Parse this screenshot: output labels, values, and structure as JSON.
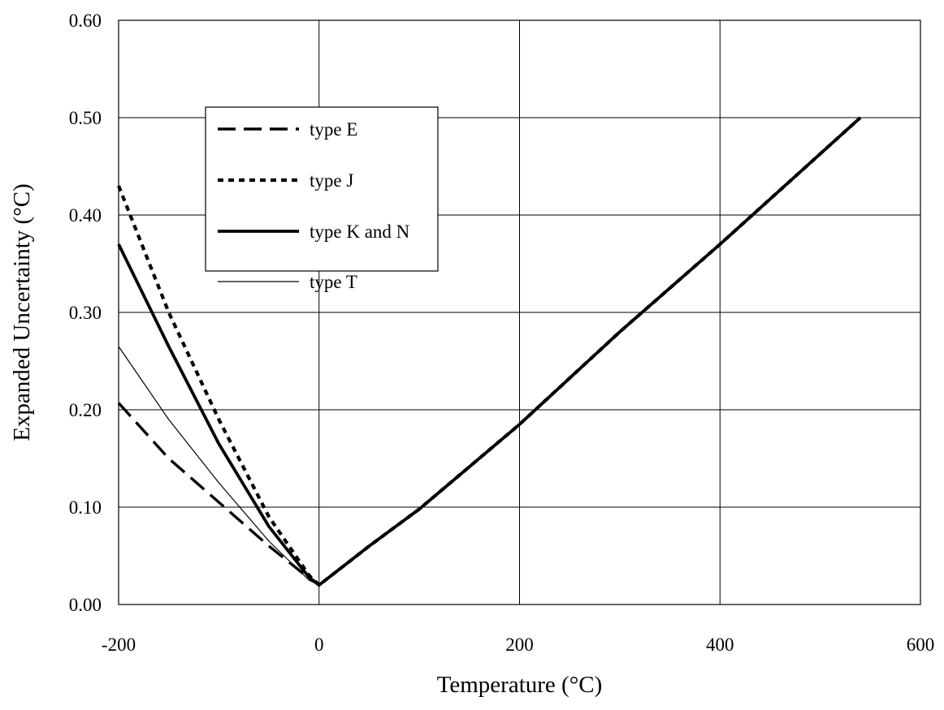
{
  "chart_data": {
    "type": "line",
    "xlabel": "Temperature (°C)",
    "ylabel": "Expanded Uncertainty (°C)",
    "xlim": [
      -200,
      600
    ],
    "ylim": [
      0,
      0.6
    ],
    "x_ticks": [
      -200,
      0,
      200,
      400,
      600
    ],
    "x_tick_labels": [
      "-200",
      "0",
      "200",
      "400",
      "600"
    ],
    "y_ticks": [
      0,
      0.1,
      0.2,
      0.3,
      0.4,
      0.5,
      0.6
    ],
    "y_tick_labels": [
      "0.00",
      "0.10",
      "0.20",
      "0.30",
      "0.40",
      "0.50",
      "0.60"
    ],
    "grid": true,
    "legend_position": "upper-left",
    "series": [
      {
        "name": "type E",
        "style": "dashed-thick",
        "color": "#000000",
        "points": [
          [
            -200,
            0.207
          ],
          [
            -150,
            0.15
          ],
          [
            -100,
            0.105
          ],
          [
            -50,
            0.06
          ],
          [
            -10,
            0.027
          ],
          [
            0,
            0.02
          ],
          [
            50,
            0.06
          ],
          [
            100,
            0.098
          ],
          [
            200,
            0.185
          ],
          [
            300,
            0.28
          ],
          [
            400,
            0.37
          ],
          [
            540,
            0.5
          ]
        ]
      },
      {
        "name": "type J",
        "style": "dotted",
        "color": "#000000",
        "points": [
          [
            -200,
            0.43
          ],
          [
            -150,
            0.3
          ],
          [
            -100,
            0.19
          ],
          [
            -50,
            0.09
          ],
          [
            -10,
            0.03
          ],
          [
            0,
            0.02
          ],
          [
            50,
            0.06
          ],
          [
            100,
            0.098
          ],
          [
            200,
            0.185
          ],
          [
            300,
            0.28
          ],
          [
            400,
            0.37
          ],
          [
            540,
            0.5
          ]
        ]
      },
      {
        "name": "type K and N",
        "style": "solid-thick",
        "color": "#000000",
        "points": [
          [
            -200,
            0.37
          ],
          [
            -150,
            0.265
          ],
          [
            -100,
            0.165
          ],
          [
            -50,
            0.08
          ],
          [
            -10,
            0.028
          ],
          [
            0,
            0.02
          ],
          [
            50,
            0.06
          ],
          [
            100,
            0.098
          ],
          [
            200,
            0.185
          ],
          [
            300,
            0.28
          ],
          [
            400,
            0.37
          ],
          [
            540,
            0.5
          ]
        ]
      },
      {
        "name": "type T",
        "style": "solid-thin",
        "color": "#000000",
        "points": [
          [
            -200,
            0.265
          ],
          [
            -150,
            0.19
          ],
          [
            -100,
            0.125
          ],
          [
            -50,
            0.065
          ],
          [
            -10,
            0.025
          ],
          [
            0,
            0.02
          ],
          [
            50,
            0.06
          ],
          [
            100,
            0.098
          ],
          [
            200,
            0.185
          ],
          [
            300,
            0.28
          ],
          [
            400,
            0.37
          ],
          [
            540,
            0.5
          ]
        ]
      }
    ]
  }
}
